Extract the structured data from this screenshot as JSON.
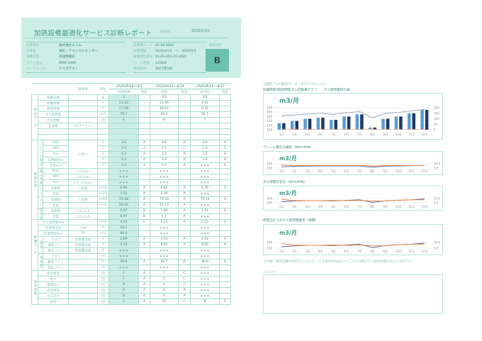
{
  "header": {
    "title": "加熱設備最適化サービス診断レポート",
    "created_label": "作成日",
    "created": "2020/5/10",
    "left": [
      {
        "k": "お客様名",
        "v": "株式会社エコム"
      },
      {
        "k": "工場名",
        "v": "本社・テクニカルセンター"
      },
      {
        "k": "設備名称",
        "v": "高速熱風炉"
      },
      {
        "k": "バーナ型式",
        "v": "MIPE-100K"
      },
      {
        "k": "バーナメーカ",
        "v": "ナリタテクノ"
      }
    ],
    "right": [
      {
        "k": "お客様コード",
        "v": "01-00-0001"
      },
      {
        "k": "診断期間",
        "v": "2020/4/15　～　2020/5/1"
      },
      {
        "k": "設備識別番号",
        "v": "01-01-001-01-V001"
      },
      {
        "k": "バーナ定格",
        "v": "120kW"
      },
      {
        "k": "製造年月",
        "v": "2007年5月"
      }
    ],
    "grade_label": "総合判定",
    "grade": "B"
  },
  "table": {
    "head": {
      "base": "基準値",
      "unit": "単位",
      "periods": [
        "2020/4/29～5/1",
        "2020/4/22～4/24",
        "2020/4/15～4/17"
      ],
      "cols": [
        "今回結果",
        "判定",
        "前回",
        "判定",
        "前々回",
        "判定"
      ]
    },
    "sections": [
      {
        "label": "総合データ",
        "groups": [
          {
            "label": "",
            "rows": [
              [
                "稼働日数",
                "",
                "日",
                "3",
                "-",
                "3/3",
                "-",
                "3/3",
                "-"
              ],
              [
                "稼働時間",
                "",
                "h",
                "21:33",
                "-",
                "21:49",
                "-",
                "4:42",
                "-"
              ],
              [
                "燃焼時間",
                "",
                "h",
                "17:58",
                "-",
                "18:02",
                "-",
                "0:32",
                "-"
              ],
              [
                "ガス使用量",
                "",
                "m3",
                "76.7",
                "-",
                "40.3",
                "-",
                "52.7",
                "-"
              ],
              [
                "点火回数",
                "",
                "回",
                "4",
                "-",
                "6",
                "-",
                "7",
                "-"
              ],
              [
                "生産数",
                "（オプション）",
                "",
                "",
                "-",
                "",
                "-",
                "",
                "-"
              ],
              [
                "",
                "",
                "",
                "",
                "",
                "",
                "",
                "",
                ""
              ],
              [
                "",
                "",
                "",
                "",
                "",
                "",
                "",
                "",
                ""
              ]
            ]
          }
        ]
      },
      {
        "label": "燃焼状態",
        "groups": [
          {
            "label": "フレーム電圧",
            "base": "2.0V～",
            "rows": [
              [
                "MAX",
                "",
                "V",
                "3.6",
                "A",
                "3.6",
                "A",
                "3.8",
                "A"
              ],
              [
                "MIN",
                "",
                "V",
                "3.0",
                "A",
                "1.5",
                "C",
                "1.4",
                "C"
              ],
              [
                "Ave",
                "",
                "V",
                "3.3",
                "A",
                "3.1",
                "A",
                "3.2",
                "A"
              ],
              [
                "高燃焼Ave",
                "",
                "V",
                "3.4",
                "A",
                "3.4",
                "A",
                "3.6",
                "A"
              ],
              [
                "定常Ave",
                "",
                "V",
                "3.3",
                "A",
                "3.0",
                "A",
                "＊＊＊",
                "A"
              ]
            ]
          },
          {
            "label": "着火時間",
            "rows": [
              [
                "MAX",
                "～3.0sec",
                "",
                "＊＊＊",
                "",
                "＊＊＊",
                "",
                "＊＊＊",
                ""
              ],
              [
                "MIN",
                "1.0～sec",
                "",
                "＊＊＊",
                "",
                "＊＊＊",
                "",
                "＊＊＊",
                ""
              ],
              [
                "Ave",
                "1.5～2.5sec",
                "",
                "＊＊＊",
                "",
                "＊＊＊",
                "",
                "＊＊＊",
                ""
              ]
            ]
          },
          {
            "label": "ガス",
            "rows": [
              [
                "高燃焼",
                "～定格",
                "m3/h",
                "6.96",
                "A",
                "6.84",
                "A",
                "6.79",
                "A"
              ],
              [
                "定常",
                "",
                "m3/h",
                "3.51",
                "A",
                "2.19",
                "A",
                "＊＊＊",
                ""
              ]
            ]
          },
          {
            "label": "エア",
            "rows": [
              [
                "高燃焼",
                "～定格",
                "m3/h",
                "73.48",
                "A",
                "73.53",
                "A",
                "73.13",
                "A"
              ],
              [
                "定常",
                "",
                "m3/h",
                "29.16",
                "A",
                "25.14",
                "A",
                "＊＊＊",
                ""
              ]
            ]
          },
          {
            "label": "空気比",
            "rows": [
              [
                "高燃焼",
                "1.0～1.5",
                "",
                "0.97",
                "B",
                "1.00",
                "A",
                "1.01",
                "A"
              ],
              [
                "定常",
                "1.0～2.0",
                "",
                "0.97",
                "B",
                "1.1",
                "A",
                "＊＊＊",
                ""
              ]
            ]
          }
        ]
      },
      {
        "label": "稼働データ",
        "groups": [
          {
            "label": "",
            "rows": [
              [
                "ガス使用量Ave",
                "",
                "m3/h",
                "4.30",
                "C",
                "2.23",
                "A",
                "2.15",
                "A"
              ],
              [
                "定常時出力",
                "～80",
                "%",
                "16.2",
                "",
                "＊＊＊",
                "",
                "＊＊＊",
                ""
              ],
              [
                "昇温時間Ave",
                "30",
                "min",
                "84.0",
                "",
                "＊＊＊",
                "",
                "＊＊＊",
                ""
              ]
            ]
          },
          {
            "label": "電流",
            "rows": [
              [
                "ブロワ",
                "定格電流値",
                "A",
                "2.69",
                "A",
                "2.53",
                "A",
                "2.53",
                "A"
              ],
              [
                "循環ファン",
                "定格電流値",
                "A",
                "9.59",
                "A",
                "9.65",
                "A",
                "8.05",
                "A"
              ],
              [
                "排気ファン",
                "定格電流値",
                "A",
                "＊＊＊",
                "",
                "＊＊＊",
                "",
                "＊＊＊",
                ""
              ]
            ]
          },
          {
            "label": "周波数",
            "rows": [
              [
                "ブロワ",
                "",
                "Hz",
                "＊＊＊",
                "",
                "＊＊＊",
                "",
                "＊＊＊",
                ""
              ],
              [
                "循環ファン",
                "",
                "Hz",
                "39.9",
                "A",
                "31.7",
                "A",
                "28.0",
                "A"
              ],
              [
                "排気ファン",
                "",
                "Hz",
                "＊＊＊",
                "",
                "＊＊＊",
                "",
                "＊＊＊",
                ""
              ]
            ]
          }
        ]
      },
      {
        "label": "異常回数",
        "groups": [
          {
            "label": "",
            "rows": [
              [
                "総合異常",
                "",
                "回",
                "1",
                "A",
                "7",
                "C",
                "＊＊＊",
                ""
              ],
              [
                "失火",
                "",
                "回",
                "1",
                "A",
                "2",
                "C",
                "＊＊＊",
                ""
              ],
              [
                "循環圧力",
                "",
                "回",
                "0",
                "A",
                "1",
                "C",
                "＊＊＊",
                ""
              ],
              [
                "高温異常",
                "",
                "回",
                "0",
                "A",
                "0",
                "A",
                "＊＊＊",
                ""
              ],
              [
                "ガス圧力",
                "",
                "回",
                "0",
                "A",
                "0",
                "A",
                "＊＊＊",
                ""
              ],
              [
                "合計",
                "",
                "回",
                "2",
                "A",
                "10",
                "C",
                "8",
                "C"
              ]
            ]
          }
        ]
      }
    ]
  },
  "right": {
    "intro": "1週間ごとの総合データーをグラフにしたい",
    "chart1_caption": "稼働時間/燃焼時間/点火回数棒グラフ　　ガス使用量折れ線",
    "chart2_caption": "フレーム電圧の推移（MAX/MIN）",
    "chart3_caption": "点火時間の変化（MAX/MIN）",
    "chart4_caption": "時間当たりのガス使用量推移（燃費）",
    "other_caption": "その他／異常回数が増えているトピックス等があればいつごろから増えているのか変わるようなグラフ",
    "comment_label": "コメント"
  },
  "chart_data": [
    {
      "type": "bar",
      "title": "m3/月",
      "categories": [
        "1月",
        "2月",
        "3月",
        "4月",
        "5月",
        "6月",
        "7月",
        "8月",
        "9月",
        "10月",
        "11月",
        "12月"
      ],
      "ylim": [
        100,
        200
      ],
      "yticks": [
        "100",
        "120",
        "140",
        "160",
        "180",
        "200"
      ],
      "y2lim": [
        0,
        200
      ],
      "y2ticks": [
        "0",
        "50",
        "100",
        "150",
        "200"
      ],
      "series": [
        {
          "name": "bar-a",
          "kind": "bar",
          "color": "#5b9bd5",
          "values": [
            130,
            140,
            150,
            155,
            145,
            160,
            170,
            110,
            150,
            160,
            175,
            190
          ]
        },
        {
          "name": "bar-b",
          "kind": "bar",
          "color": "#1f3864",
          "values": [
            130,
            140,
            150,
            155,
            145,
            160,
            170,
            110,
            150,
            160,
            175,
            190
          ]
        },
        {
          "name": "line-a",
          "kind": "line",
          "axis": "y2",
          "color": "#8496b0",
          "values": [
            127,
            135,
            143,
            150,
            140,
            155,
            165,
            108,
            148,
            158,
            172,
            185
          ]
        },
        {
          "name": "line-b",
          "kind": "line",
          "axis": "y2",
          "color": "#f4b183",
          "values": [
            5,
            5,
            5,
            5,
            5,
            5,
            5,
            5,
            5,
            5,
            5,
            5
          ]
        }
      ]
    },
    {
      "type": "line",
      "title": "m3/月",
      "categories": [
        "1月",
        "2月",
        "3月",
        "4月",
        "5月",
        "6月",
        "7月",
        "8月",
        "9月",
        "10月",
        "11月",
        "12月"
      ],
      "ylim": [
        100,
        200
      ],
      "yticks": [
        "100",
        "200"
      ],
      "y2lim": [
        5,
        10
      ],
      "y2ticks": [
        "5.0",
        "10.0"
      ],
      "series": [
        {
          "name": "blue",
          "kind": "line",
          "color": "#4a5ea8",
          "values": [
            130,
            140,
            145,
            150,
            150,
            150,
            150,
            120,
            145,
            150,
            155,
            160
          ]
        },
        {
          "name": "orange",
          "kind": "line",
          "axis": "y2",
          "color": "#ed7d31",
          "values": [
            8.5,
            8.0,
            8.0,
            8.0,
            8.0,
            8.0,
            8.0,
            7.3,
            8.0,
            8.0,
            8.0,
            8.0
          ]
        }
      ]
    },
    {
      "type": "line",
      "title": "m3/月",
      "categories": [
        "1月",
        "2月",
        "3月",
        "4月",
        "5月",
        "6月",
        "7月",
        "8月",
        "9月",
        "10月",
        "11月",
        "12月"
      ],
      "ylim": [
        100,
        200
      ],
      "yticks": [
        "100",
        "200"
      ],
      "y2lim": [
        5,
        10
      ],
      "y2ticks": [
        "5.0",
        "10.0"
      ],
      "series": [
        {
          "name": "blue",
          "kind": "line",
          "color": "#4a5ea8",
          "values": [
            125,
            140,
            150,
            150,
            145,
            155,
            170,
            110,
            145,
            160,
            170,
            190
          ]
        },
        {
          "name": "orange",
          "kind": "line",
          "axis": "y2",
          "color": "#ed7d31",
          "values": [
            9.0,
            7.5,
            7.5,
            7.5,
            7.8,
            7.5,
            7.8,
            7.0,
            7.0,
            8.0,
            8.5,
            8.5
          ]
        }
      ]
    },
    {
      "type": "line",
      "title": "m3/月",
      "categories": [
        "1月",
        "2月",
        "3月",
        "4月",
        "5月",
        "6月",
        "7月",
        "8月",
        "9月",
        "10月",
        "11月",
        "12月"
      ],
      "ylim": [
        100,
        200
      ],
      "yticks": [
        "100",
        "200"
      ],
      "y2lim": [
        5,
        10
      ],
      "y2ticks": [
        "5.0",
        "10.0"
      ],
      "series": [
        {
          "name": "blue",
          "kind": "line",
          "color": "#4a5ea8",
          "values": [
            125,
            140,
            150,
            150,
            145,
            155,
            170,
            110,
            145,
            160,
            170,
            190
          ]
        },
        {
          "name": "orange",
          "kind": "line",
          "axis": "y2",
          "color": "#ed7d31",
          "values": [
            9.0,
            7.5,
            7.5,
            7.5,
            7.8,
            7.5,
            7.8,
            7.0,
            7.0,
            8.0,
            8.5,
            8.5
          ]
        }
      ]
    }
  ]
}
